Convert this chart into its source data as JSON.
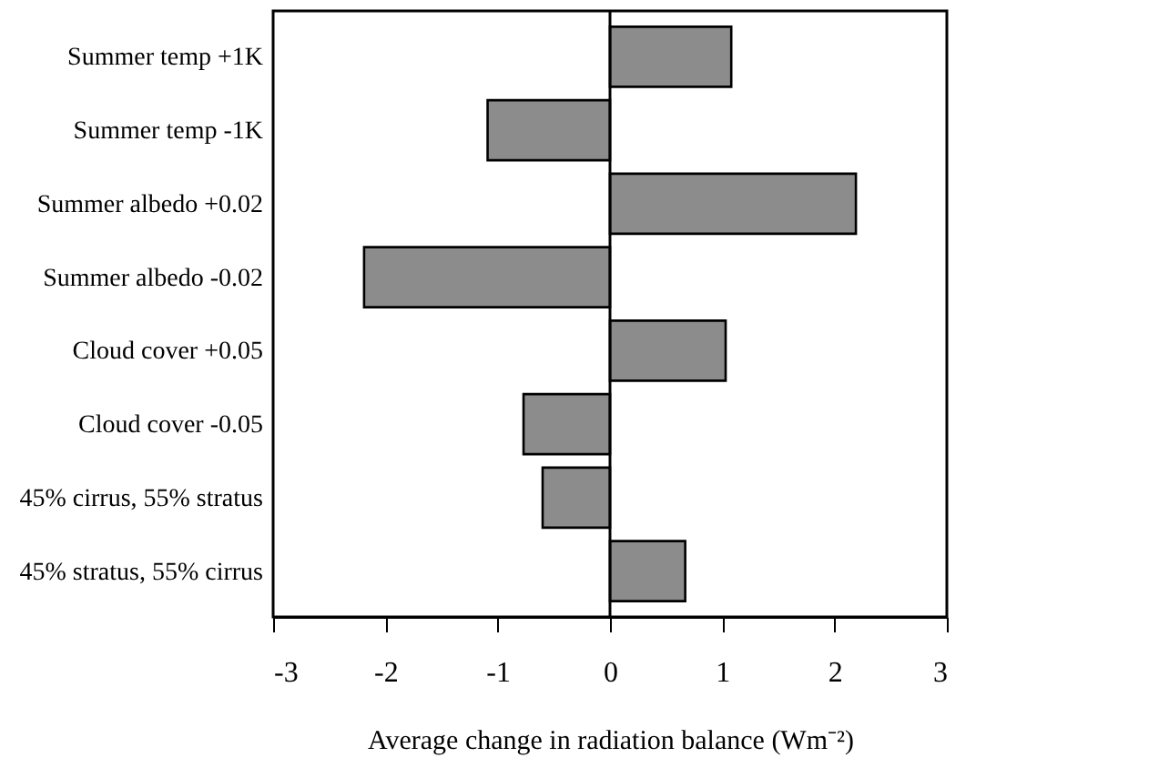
{
  "chart_data": {
    "type": "bar",
    "orientation": "horizontal",
    "categories": [
      "Summer temp +1K",
      "Summer temp -1K",
      "Summer albedo +0.02",
      "Summer albedo -0.02",
      "Cloud cover +0.05",
      "Cloud cover -0.05",
      "45% cirrus, 55% stratus",
      "45% stratus, 55% cirrus"
    ],
    "values": [
      1.08,
      -1.09,
      2.19,
      -2.19,
      1.03,
      -0.77,
      -0.6,
      0.67
    ],
    "color": "#8c8c8c",
    "xlim": [
      -3,
      3
    ],
    "xticks": [
      -3,
      -2,
      -1,
      0,
      1,
      2,
      3
    ],
    "xlabel": "Average change in radiation balance (Wm⁻²)",
    "ref_lines": [
      {
        "axis": "x",
        "value": 0,
        "color": "#000000"
      }
    ],
    "grid": false
  }
}
